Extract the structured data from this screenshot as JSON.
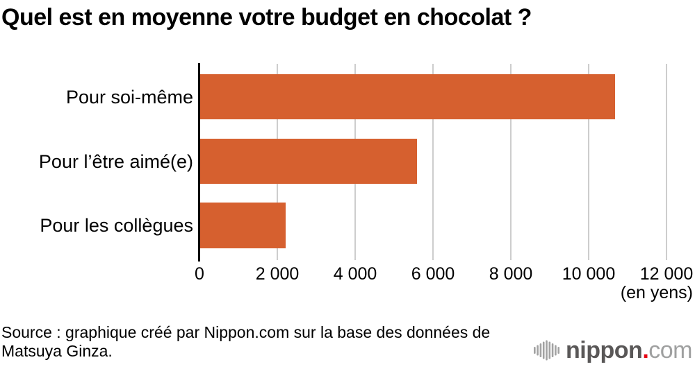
{
  "title": "Quel est en moyenne votre budget en chocolat ?",
  "chart_data": {
    "type": "bar",
    "orientation": "horizontal",
    "title": "Quel est en moyenne votre budget en chocolat ?",
    "categories": [
      "Pour soi-même",
      "Pour l’être aimé(e)",
      "Pour les collègues"
    ],
    "values": [
      10683,
      5594,
      2209
    ],
    "xlim": [
      0,
      12000
    ],
    "xticks": [
      0,
      2000,
      4000,
      6000,
      8000,
      10000,
      12000
    ],
    "xtick_labels": [
      "0",
      "2 000",
      "4 000",
      "6 000",
      "8 000",
      "10 000",
      "12 000"
    ],
    "unit_label": "(en yens)",
    "grid": true,
    "legend": false,
    "bar_color": "#d6602f",
    "gridline_color": "#cdcdcd",
    "axis_color": "#000000"
  },
  "source": {
    "line1": "Source : graphique créé par Nippon.com sur la base des données de",
    "line2": "Matsuya Ginza."
  },
  "logo": {
    "name": "nippon",
    "dot": ".",
    "tld": "com",
    "name_color": "#595757",
    "dot_color": "#e60012",
    "tld_color": "#9fa0a0",
    "wave_color": "#a2a2a2"
  }
}
